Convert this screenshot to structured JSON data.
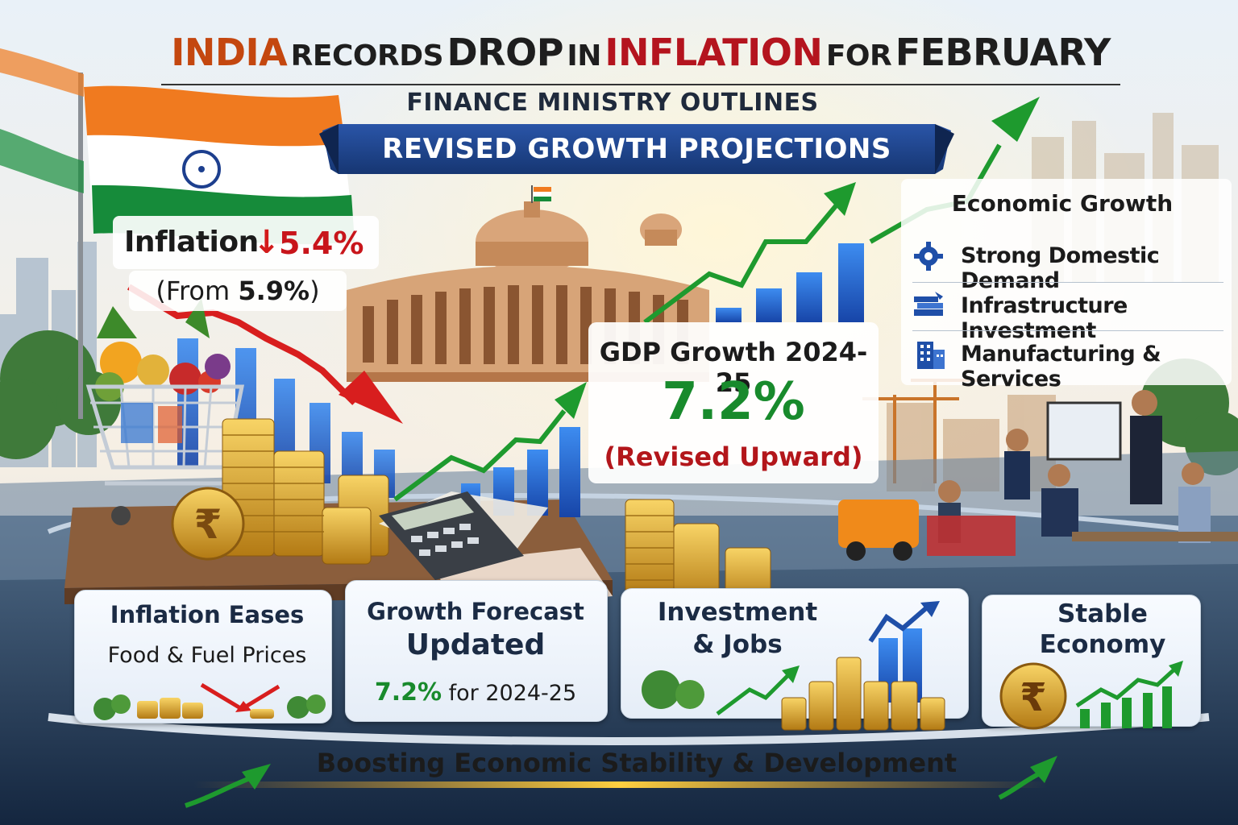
{
  "headline": {
    "part1": "INDIA",
    "part2": "RECORDS",
    "part3": "DROP",
    "part4": "IN",
    "part5": "INFLATION",
    "part6": "FOR",
    "part7": "FEBRUARY"
  },
  "subheadline": {
    "line1": "FINANCE MINISTRY OUTLINES",
    "line2": "REVISED GROWTH PROJECTIONS"
  },
  "inflation": {
    "label": "Inflation",
    "arrow": "↓",
    "value": "5.4%",
    "from_prefix": "(From ",
    "from_value": "5.9%",
    "from_suffix": ")"
  },
  "gdp": {
    "label": "GDP Growth 2024-25",
    "value": "7.2%",
    "note": "(Revised Upward)"
  },
  "economic_growth": {
    "title": "Economic Growth",
    "items": [
      {
        "label": "Strong Domestic Demand",
        "icon": "gear-icon"
      },
      {
        "label": "Infrastructure Investment",
        "icon": "books-icon"
      },
      {
        "label": "Manufacturing & Services",
        "icon": "building-icon"
      }
    ]
  },
  "cards": {
    "c1": {
      "title": "Inflation Eases",
      "sub": "Food & Fuel Prices"
    },
    "c2": {
      "title1": "Growth Forecast",
      "title2": "Updated",
      "value": "7.2%",
      "sub": " for 2024-25"
    },
    "c3": {
      "title1": "Investment",
      "title2": "& Jobs"
    },
    "c4": {
      "title1": "Stable",
      "title2": "Economy"
    }
  },
  "footer": "Boosting Economic Stability & Development",
  "colors": {
    "growth_green": "#1e9a2e",
    "decline_red": "#d81e1e",
    "banner_navy": "#1b3a7a",
    "saffron": "#f07a1f",
    "india_green": "#168b3a",
    "chart_blue": "#1f66d1"
  }
}
